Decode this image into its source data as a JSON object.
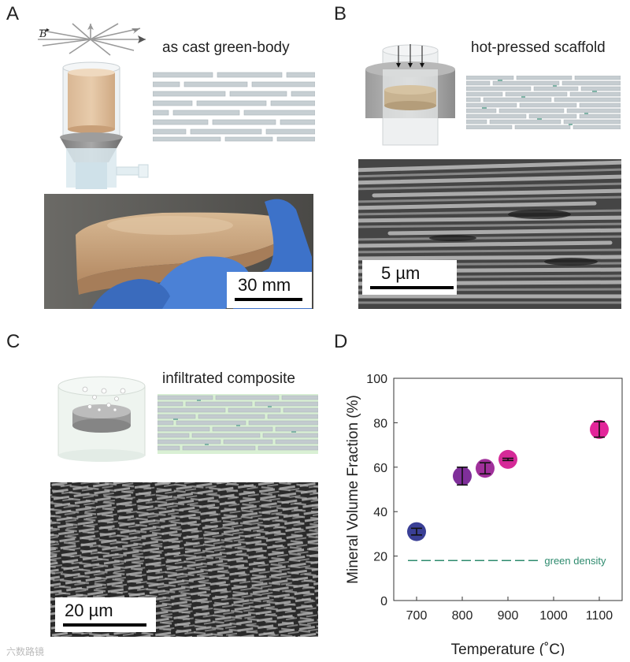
{
  "panels": {
    "A": {
      "letter": "A",
      "caption": "as cast green-body",
      "field_label": "B",
      "photo_scalebar": "30 mm"
    },
    "B": {
      "letter": "B",
      "caption": "hot-pressed scaffold",
      "sem_scalebar": "5 µm"
    },
    "C": {
      "letter": "C",
      "caption": "infiltrated composite",
      "sem_scalebar": "20 µm"
    },
    "D": {
      "letter": "D"
    }
  },
  "chart_data": {
    "type": "scatter",
    "xlabel": "Temperature (˚C)",
    "ylabel": "Mineral  Volume Fraction (%)",
    "xlim": [
      650,
      1150
    ],
    "ylim": [
      0,
      100
    ],
    "xticks": [
      700,
      800,
      900,
      1000,
      1100
    ],
    "yticks": [
      0,
      20,
      40,
      60,
      80,
      100
    ],
    "grid": false,
    "points": [
      {
        "x": 700,
        "y": 31,
        "err": 1.5,
        "color": "#3a3f96"
      },
      {
        "x": 800,
        "y": 56,
        "err": 4,
        "color": "#7f2f9a"
      },
      {
        "x": 850,
        "y": 59.5,
        "err": 2.5,
        "color": "#a0309b"
      },
      {
        "x": 900,
        "y": 63.5,
        "err": 0.5,
        "color": "#d52a98"
      },
      {
        "x": 1100,
        "y": 77,
        "err": 3.5,
        "color": "#e3259a"
      }
    ],
    "reference_line": {
      "y": 18,
      "label": "green density",
      "color": "#2e8b6e"
    }
  },
  "watermark": "六数路镜"
}
